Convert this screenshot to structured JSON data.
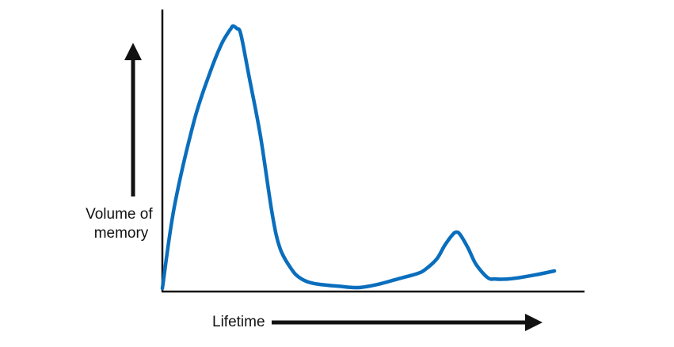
{
  "chart_data": {
    "type": "line",
    "ylabel_lines": [
      "Volume of",
      "memory"
    ],
    "xlabel": "Lifetime",
    "xlim": [
      0,
      100
    ],
    "ylim": [
      0,
      100
    ],
    "grid": false,
    "legend": "none",
    "series": [
      {
        "color": "#0a6ebd",
        "x": [
          0,
          3,
          8,
          12,
          15,
          17,
          17.5,
          18,
          19,
          20,
          22,
          25,
          28,
          30,
          33,
          35,
          37,
          40,
          45,
          50,
          55,
          60,
          65,
          67,
          70,
          72,
          74,
          75,
          76,
          78,
          80,
          83,
          85,
          88,
          91,
          95,
          100
        ],
        "y": [
          0,
          30,
          62,
          80,
          91,
          96,
          97,
          98,
          97,
          95,
          80,
          57,
          28,
          15,
          7,
          4,
          2.5,
          1.5,
          0.8,
          0.3,
          1.5,
          3.5,
          5.5,
          7,
          11,
          16,
          20,
          21,
          20,
          15,
          9,
          4,
          3.5,
          3.5,
          4,
          5,
          6.5
        ]
      }
    ]
  }
}
